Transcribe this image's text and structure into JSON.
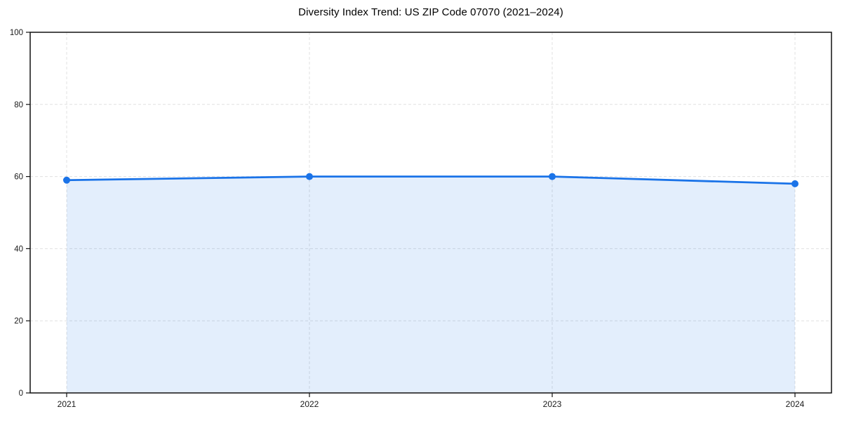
{
  "chart_data": {
    "type": "line",
    "title": "Diversity Index Trend: US ZIP Code 07070 (2021–2024)",
    "x": [
      "2021",
      "2022",
      "2023",
      "2024"
    ],
    "series": [
      {
        "name": "Diversity Index",
        "values": [
          59,
          60,
          60,
          58
        ]
      }
    ],
    "ylim": [
      0,
      100
    ],
    "yticks": [
      0,
      20,
      40,
      60,
      80,
      100
    ],
    "xlabel": "",
    "ylabel": "",
    "grid": true,
    "grid_style": "dashed",
    "legend": "none",
    "fill_under_line": true,
    "markers": true,
    "colors": {
      "line": "#1a73e8",
      "marker": "#1a73e8",
      "fill": "rgba(26,115,232,0.12)",
      "grid": "#e0e0e0",
      "spine": "#111111",
      "tick_label": "#1a1a1a",
      "title": "#000000",
      "background": "#ffffff"
    }
  }
}
